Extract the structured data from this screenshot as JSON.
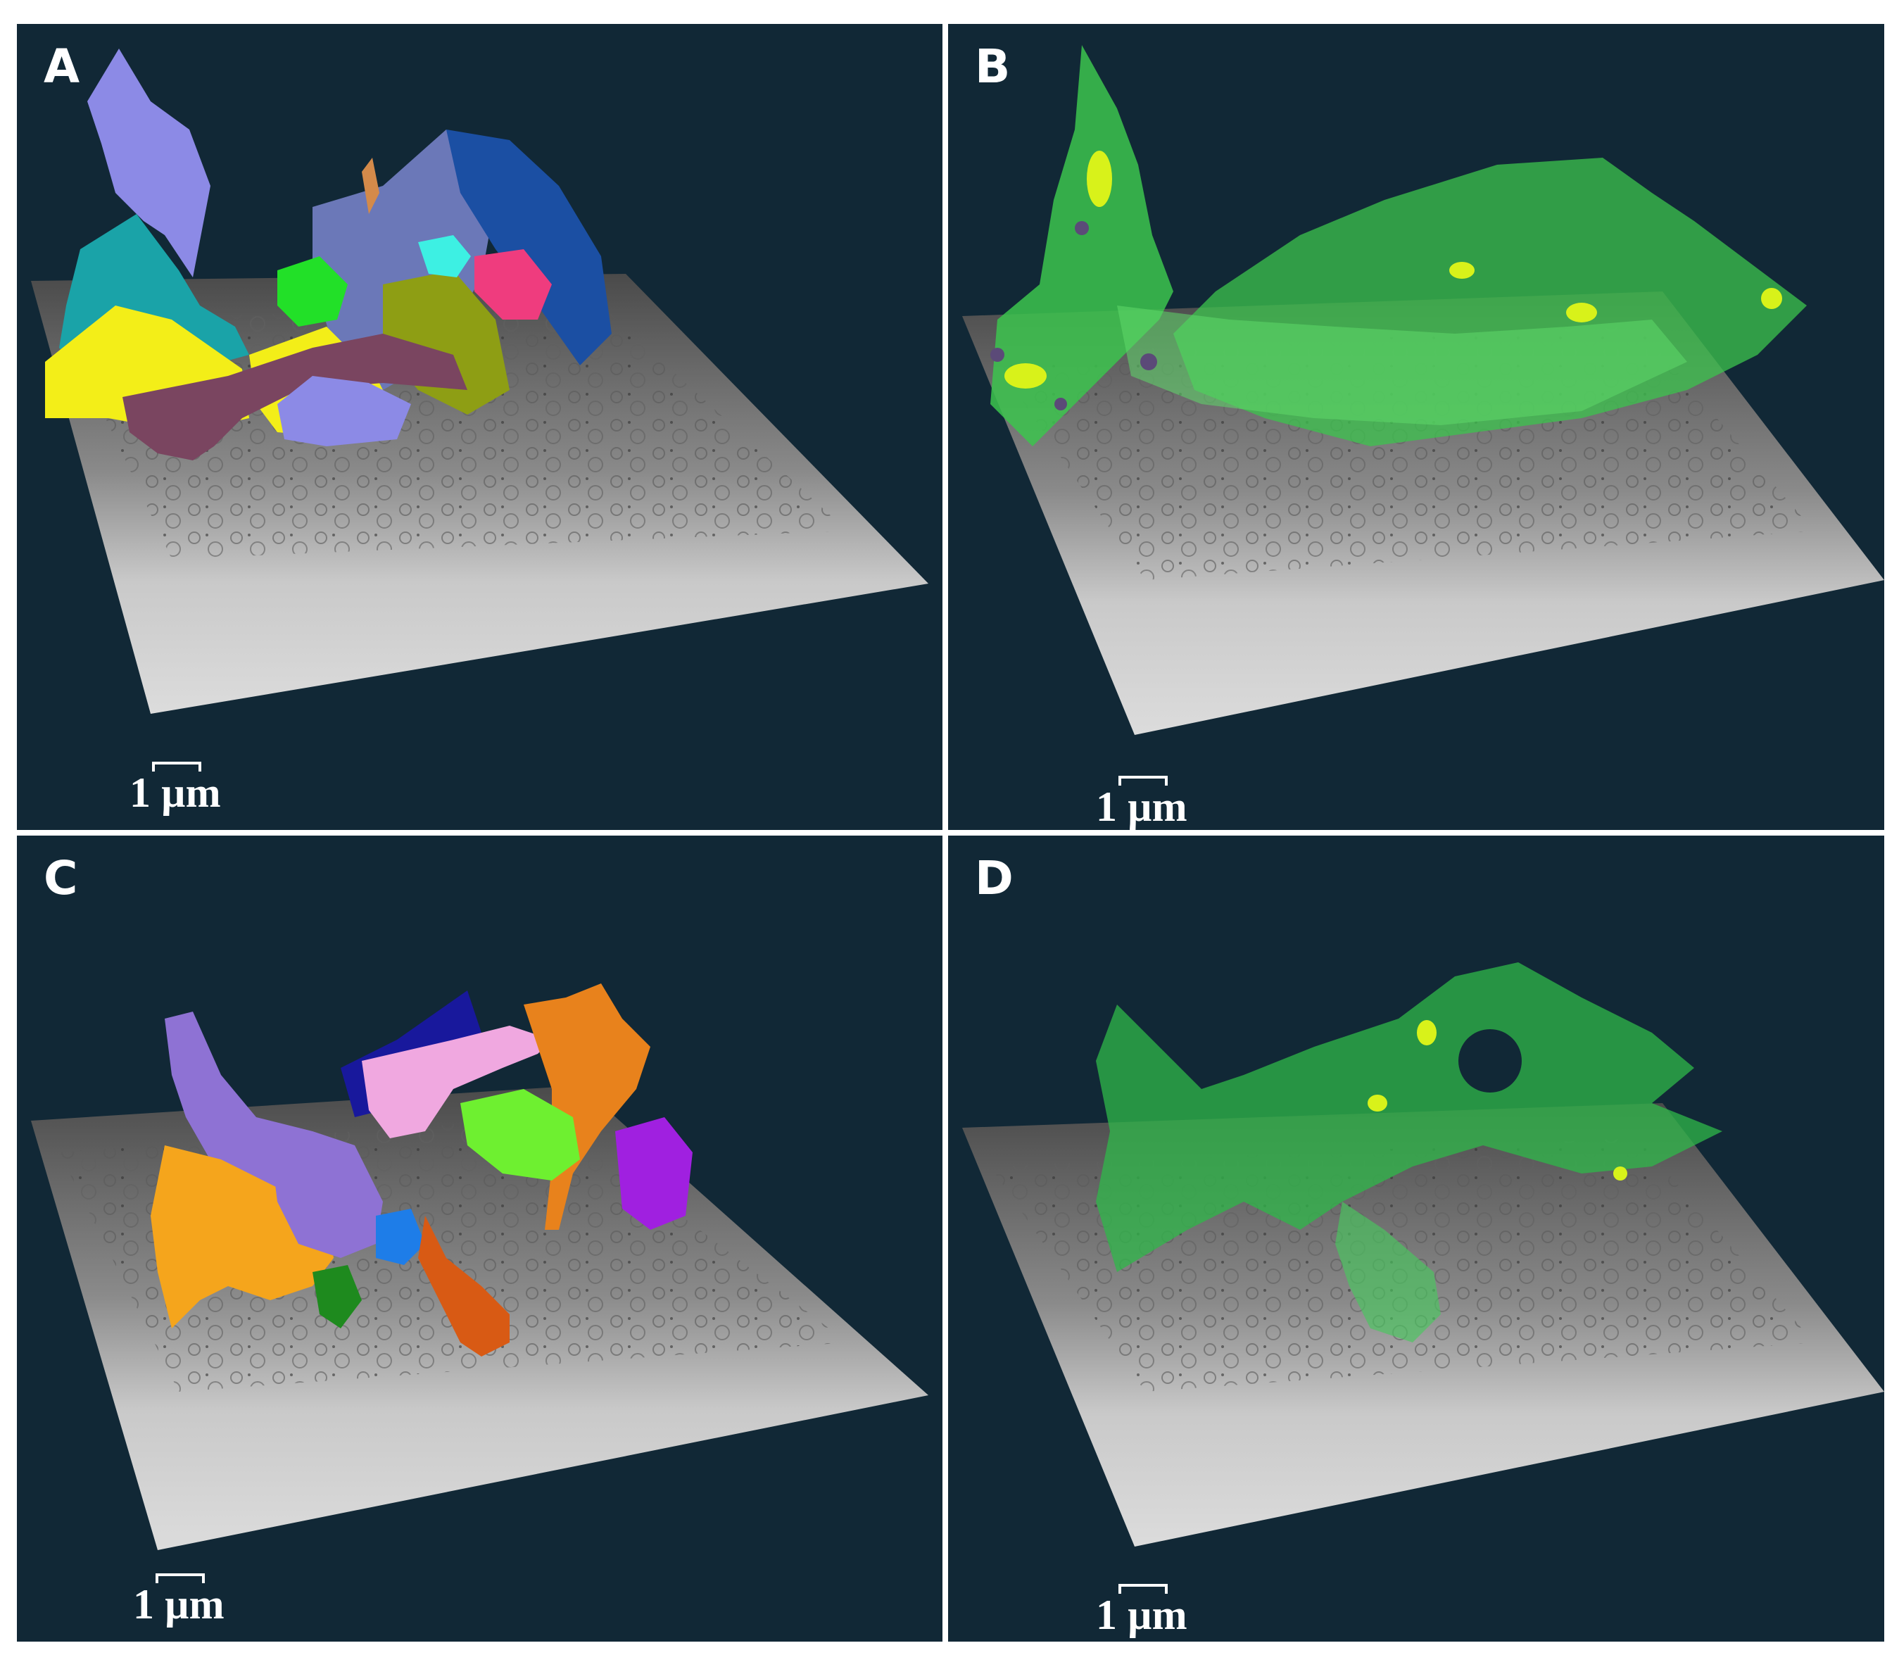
{
  "figure": {
    "panels": [
      {
        "id": "a",
        "label": "A",
        "scale_bar": "1 µm"
      },
      {
        "id": "b",
        "label": "B",
        "scale_bar": "1 µm"
      },
      {
        "id": "c",
        "label": "C",
        "scale_bar": "1 µm"
      },
      {
        "id": "d",
        "label": "D",
        "scale_bar": "1 µm"
      }
    ]
  },
  "colors": {
    "panel_background": "#112836",
    "em_slice": "#8d8d8d",
    "membrane_green": "#3cc44e",
    "organelle_yellow": "#d8f21a",
    "organelle_purple": "#5b4a78"
  }
}
